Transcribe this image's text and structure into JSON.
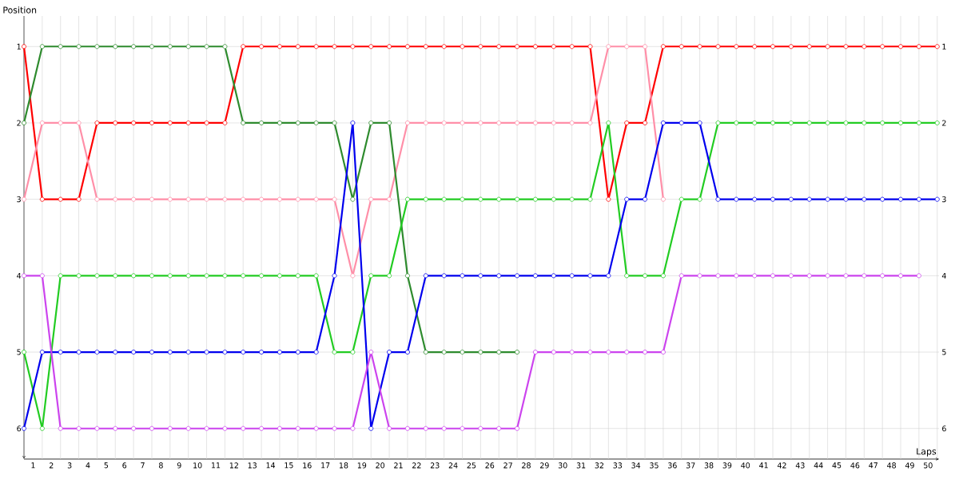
{
  "chart_data": {
    "type": "line",
    "xlabel": "Laps",
    "ylabel": "Position",
    "x": [
      0,
      1,
      2,
      3,
      4,
      5,
      6,
      7,
      8,
      9,
      10,
      11,
      12,
      13,
      14,
      15,
      16,
      17,
      18,
      19,
      20,
      21,
      22,
      23,
      24,
      25,
      26,
      27,
      28,
      29,
      30,
      31,
      32,
      33,
      34,
      35,
      36,
      37,
      38,
      39,
      40,
      41,
      42,
      43,
      44,
      45,
      46,
      47,
      48,
      49,
      50
    ],
    "xlim": [
      0,
      50.1
    ],
    "xticks": [
      {
        "value": 0.5,
        "label": "1"
      },
      {
        "value": 1.5,
        "label": "2"
      },
      {
        "value": 2.5,
        "label": "3"
      },
      {
        "value": 3.5,
        "label": "4"
      },
      {
        "value": 4.5,
        "label": "5"
      },
      {
        "value": 5.5,
        "label": "6"
      },
      {
        "value": 6.5,
        "label": "7"
      },
      {
        "value": 7.5,
        "label": "8"
      },
      {
        "value": 8.5,
        "label": "9"
      },
      {
        "value": 9.5,
        "label": "10"
      },
      {
        "value": 10.5,
        "label": "11"
      },
      {
        "value": 11.5,
        "label": "12"
      },
      {
        "value": 12.5,
        "label": "13"
      },
      {
        "value": 13.5,
        "label": "14"
      },
      {
        "value": 14.5,
        "label": "15"
      },
      {
        "value": 15.5,
        "label": "16"
      },
      {
        "value": 16.5,
        "label": "17"
      },
      {
        "value": 17.5,
        "label": "18"
      },
      {
        "value": 18.5,
        "label": "19"
      },
      {
        "value": 19.5,
        "label": "20"
      },
      {
        "value": 20.5,
        "label": "21"
      },
      {
        "value": 21.5,
        "label": "22"
      },
      {
        "value": 22.5,
        "label": "23"
      },
      {
        "value": 23.5,
        "label": "24"
      },
      {
        "value": 24.5,
        "label": "25"
      },
      {
        "value": 25.5,
        "label": "26"
      },
      {
        "value": 26.5,
        "label": "27"
      },
      {
        "value": 27.5,
        "label": "28"
      },
      {
        "value": 28.5,
        "label": "29"
      },
      {
        "value": 29.5,
        "label": "30"
      },
      {
        "value": 30.5,
        "label": "31"
      },
      {
        "value": 31.5,
        "label": "32"
      },
      {
        "value": 32.5,
        "label": "33"
      },
      {
        "value": 33.5,
        "label": "34"
      },
      {
        "value": 34.5,
        "label": "35"
      },
      {
        "value": 35.5,
        "label": "36"
      },
      {
        "value": 36.5,
        "label": "37"
      },
      {
        "value": 37.5,
        "label": "38"
      },
      {
        "value": 38.5,
        "label": "39"
      },
      {
        "value": 39.5,
        "label": "40"
      },
      {
        "value": 40.5,
        "label": "41"
      },
      {
        "value": 41.5,
        "label": "42"
      },
      {
        "value": 42.5,
        "label": "43"
      },
      {
        "value": 43.5,
        "label": "44"
      },
      {
        "value": 44.5,
        "label": "45"
      },
      {
        "value": 45.5,
        "label": "46"
      },
      {
        "value": 46.5,
        "label": "47"
      },
      {
        "value": 47.5,
        "label": "48"
      },
      {
        "value": 48.5,
        "label": "49"
      },
      {
        "value": 49.5,
        "label": "50"
      }
    ],
    "ylim": [
      6.4,
      0.6
    ],
    "yticks": [
      1,
      2,
      3,
      4,
      5,
      6
    ],
    "y2lim": [
      6.4,
      0.6
    ],
    "y2ticks": [
      1,
      2,
      3,
      4,
      5,
      6
    ],
    "grid": true,
    "marker": "circle",
    "line_style": "solid",
    "series": [
      {
        "color": "#ff0000",
        "values": [
          1,
          3,
          3,
          3,
          2,
          2,
          2,
          2,
          2,
          2,
          2,
          2,
          1,
          1,
          1,
          1,
          1,
          1,
          1,
          1,
          1,
          1,
          1,
          1,
          1,
          1,
          1,
          1,
          1,
          1,
          1,
          1,
          3,
          2,
          2,
          1,
          1,
          1,
          1,
          1,
          1,
          1,
          1,
          1,
          1,
          1,
          1,
          1,
          1,
          1,
          1
        ]
      },
      {
        "color": "#ff8fa8",
        "values": [
          3,
          2,
          2,
          2,
          3,
          3,
          3,
          3,
          3,
          3,
          3,
          3,
          3,
          3,
          3,
          3,
          3,
          3,
          4,
          3,
          3,
          2,
          2,
          2,
          2,
          2,
          2,
          2,
          2,
          2,
          2,
          2,
          1,
          1,
          1,
          3,
          null,
          null,
          null,
          null,
          null,
          null,
          null,
          null,
          null,
          null,
          null,
          null,
          null,
          null,
          null
        ]
      },
      {
        "color": "#2e8b2e",
        "values": [
          2,
          1,
          1,
          1,
          1,
          1,
          1,
          1,
          1,
          1,
          1,
          1,
          2,
          2,
          2,
          2,
          2,
          2,
          3,
          2,
          2,
          4,
          5,
          5,
          5,
          5,
          5,
          5,
          null,
          null,
          null,
          null,
          null,
          null,
          null,
          null,
          null,
          null,
          null,
          null,
          null,
          null,
          null,
          null,
          null,
          null,
          null,
          null,
          null,
          null,
          null
        ]
      },
      {
        "color": "#22cc22",
        "values": [
          5,
          6,
          4,
          4,
          4,
          4,
          4,
          4,
          4,
          4,
          4,
          4,
          4,
          4,
          4,
          4,
          4,
          5,
          5,
          4,
          4,
          3,
          3,
          3,
          3,
          3,
          3,
          3,
          3,
          3,
          3,
          3,
          2,
          4,
          4,
          4,
          3,
          3,
          2,
          2,
          2,
          2,
          2,
          2,
          2,
          2,
          2,
          2,
          2,
          2,
          2
        ]
      },
      {
        "color": "#0000ee",
        "values": [
          6,
          5,
          5,
          5,
          5,
          5,
          5,
          5,
          5,
          5,
          5,
          5,
          5,
          5,
          5,
          5,
          5,
          4,
          2,
          6,
          5,
          5,
          4,
          4,
          4,
          4,
          4,
          4,
          4,
          4,
          4,
          4,
          4,
          3,
          3,
          2,
          2,
          2,
          3,
          3,
          3,
          3,
          3,
          3,
          3,
          3,
          3,
          3,
          3,
          3,
          3
        ]
      },
      {
        "color": "#cc44ee",
        "values": [
          4,
          4,
          6,
          6,
          6,
          6,
          6,
          6,
          6,
          6,
          6,
          6,
          6,
          6,
          6,
          6,
          6,
          6,
          6,
          5,
          6,
          6,
          6,
          6,
          6,
          6,
          6,
          6,
          5,
          5,
          5,
          5,
          5,
          5,
          5,
          5,
          4,
          4,
          4,
          4,
          4,
          4,
          4,
          4,
          4,
          4,
          4,
          4,
          4,
          4,
          null
        ]
      }
    ]
  }
}
